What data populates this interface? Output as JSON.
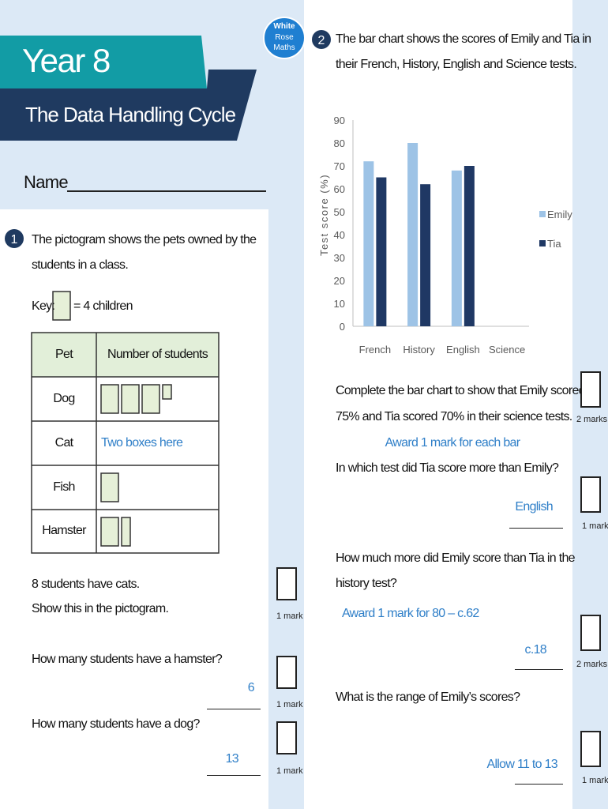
{
  "header": {
    "title": "Year 8",
    "subtitle": "The Data Handling Cycle",
    "logo": [
      "White",
      "Rose",
      "Maths"
    ],
    "name_label": "Name"
  },
  "question1": {
    "number": "1",
    "prompt": [
      "The pictogram shows the pets owned by the",
      "students in a class."
    ],
    "key": {
      "label": "Key:",
      "text": "= 4 children"
    },
    "table": {
      "headers": [
        "Pet",
        "Number of students"
      ],
      "rows": [
        {
          "pet": "Dog",
          "symbols": [
            1,
            1,
            1,
            0.25
          ]
        },
        {
          "pet": "Cat",
          "answer": "Two boxes here",
          "symbols": []
        },
        {
          "pet": "Fish",
          "symbols": [
            1
          ]
        },
        {
          "pet": "Hamster",
          "symbols": [
            1,
            0.5
          ]
        }
      ]
    },
    "parts": [
      {
        "text": [
          "8 students have cats.",
          "Show this in the pictogram."
        ],
        "marks": "1 mark"
      },
      {
        "text": [
          "How many students have a hamster?"
        ],
        "answer": "6",
        "marks": "1 mark"
      },
      {
        "text": [
          "How many students have a dog?"
        ],
        "answer": "13",
        "marks": "1 mark"
      }
    ]
  },
  "question2": {
    "number": "2",
    "prompt": [
      "The bar chart shows the scores of Emily and Tia in",
      "their French, History, English and Science tests."
    ],
    "parts": [
      {
        "text": [
          "Complete the bar chart to show that Emily scored",
          "75% and Tia scored 70% in their science tests."
        ],
        "answer": "Award 1 mark for each bar",
        "marks": "2 marks"
      },
      {
        "text": [
          "In which test did Tia score more than Emily?"
        ],
        "answer": "English",
        "marks": "1 mark"
      },
      {
        "text": [
          "How much more did Emily score than Tia in the",
          "history test?"
        ],
        "note": "Award 1 mark for 80 – c.62",
        "answer": "c.18",
        "marks": "2 marks"
      },
      {
        "text": [
          "What is the range of Emily’s scores?"
        ],
        "answer": "Allow 11 to 13",
        "marks": "1 mark"
      }
    ]
  },
  "chart_data": {
    "type": "bar",
    "ylabel": "Test score (%)",
    "categories": [
      "French",
      "History",
      "English",
      "Science"
    ],
    "series": [
      {
        "name": "Emily",
        "color": "#9dc3e6",
        "values": [
          72,
          80,
          68,
          null
        ]
      },
      {
        "name": "Tia",
        "color": "#1f3864",
        "values": [
          65,
          62,
          70,
          null
        ]
      }
    ],
    "ylim": [
      0,
      90
    ],
    "yticks": [
      0,
      10,
      20,
      30,
      40,
      50,
      60,
      70,
      80,
      90
    ],
    "grid": false,
    "legend": "right"
  }
}
